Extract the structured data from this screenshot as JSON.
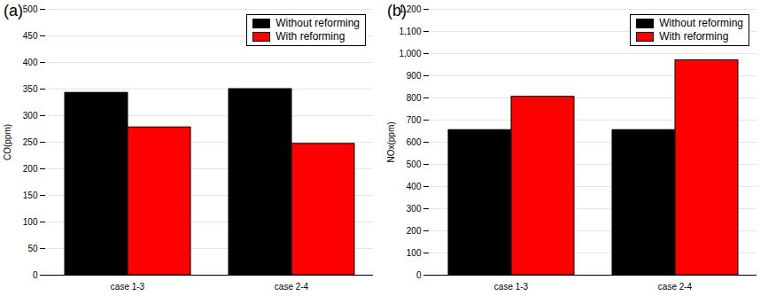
{
  "chart_data": [
    {
      "type": "bar",
      "title": "(a)",
      "y_label": "CO(ppm)",
      "categories": [
        "case 1-3",
        "case 2-4"
      ],
      "series": [
        {
          "name": "Without reforming",
          "color": "#000000",
          "values": [
            343,
            350
          ]
        },
        {
          "name": "With reforming",
          "color": "#ff0000",
          "values": [
            278,
            247
          ]
        }
      ],
      "ylim": [
        0,
        500
      ],
      "yticks": [
        0,
        50,
        100,
        150,
        200,
        250,
        300,
        350,
        400,
        450,
        500
      ],
      "grid": true,
      "legend": "top-right"
    },
    {
      "type": "bar",
      "title": "(b)",
      "y_label": "NOx(ppm)",
      "categories": [
        "case 1-3",
        "case 2-4"
      ],
      "series": [
        {
          "name": "Without reforming",
          "color": "#000000",
          "values": [
            655,
            655
          ]
        },
        {
          "name": "With reforming",
          "color": "#ff0000",
          "values": [
            805,
            970
          ]
        }
      ],
      "ylim": [
        0,
        1200
      ],
      "yticks": [
        0,
        100,
        200,
        300,
        400,
        500,
        600,
        700,
        800,
        900,
        1000,
        1100,
        1200
      ],
      "grid": true,
      "legend": "top-right"
    }
  ]
}
